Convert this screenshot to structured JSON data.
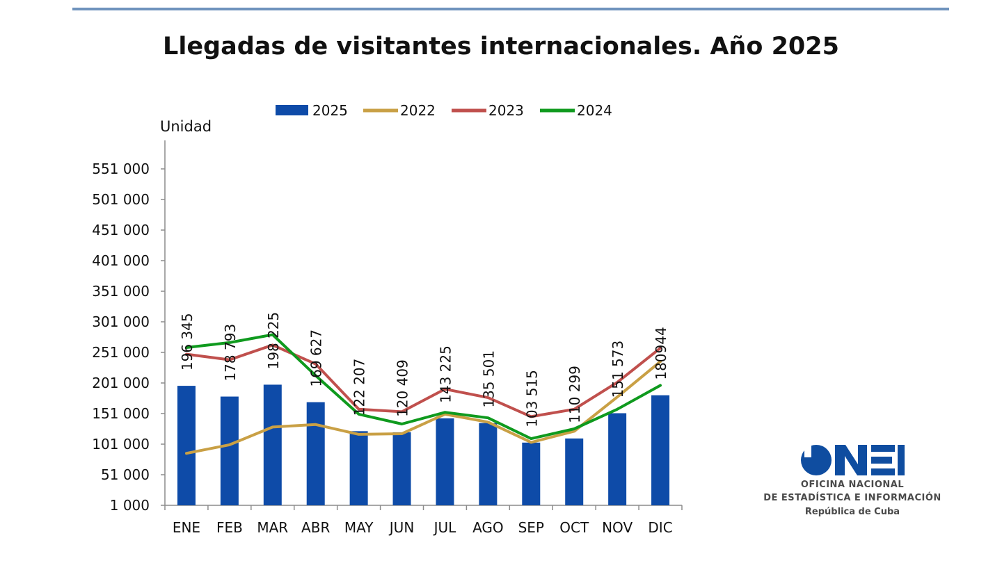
{
  "page": {
    "title": "Llegadas de visitantes internacionales. Año 2025"
  },
  "logo": {
    "line1": "OFICINA NACIONAL",
    "line2": "DE ESTADÍSTICA E INFORMACIÓN",
    "line3": "República de Cuba",
    "color": "#0f4da0"
  },
  "chart_data": {
    "type": "bar",
    "title": "Llegadas de visitantes internacionales. Año 2025",
    "ylabel": "Unidad",
    "xlabel": "",
    "ylim": [
      1000,
      601000
    ],
    "yticks": [
      1000,
      51000,
      101000,
      151000,
      201000,
      251000,
      301000,
      351000,
      401000,
      451000,
      501000,
      551000
    ],
    "ytick_labels": [
      "1 000",
      "51 000",
      "101 000",
      "151 000",
      "201 000",
      "251 000",
      "301 000",
      "351 000",
      "401 000",
      "451 000",
      "501 000",
      "551 000"
    ],
    "categories": [
      "ENE",
      "FEB",
      "MAR",
      "ABR",
      "MAY",
      "JUN",
      "JUL",
      "AGO",
      "SEP",
      "OCT",
      "NOV",
      "DIC"
    ],
    "legend_position": "top",
    "grid": false,
    "series": [
      {
        "name": "2025",
        "kind": "bar",
        "color": "#0e4ba8",
        "values": [
          196345,
          178793,
          198225,
          169627,
          122207,
          120409,
          143225,
          135501,
          103515,
          110299,
          151573,
          180944
        ],
        "labels": [
          "196 345",
          "178 793",
          "198 225",
          "169 627",
          "122 207",
          "120 409",
          "143 225",
          "135 501",
          "103 515",
          "110 299",
          "151 573",
          "180944"
        ]
      },
      {
        "name": "2022",
        "kind": "line",
        "color": "#c9a045",
        "values": [
          86000,
          100000,
          129000,
          133000,
          117000,
          118000,
          150000,
          137000,
          104000,
          122000,
          178000,
          236000
        ]
      },
      {
        "name": "2023",
        "kind": "line",
        "color": "#c0504d",
        "values": [
          248000,
          239000,
          263000,
          232000,
          158000,
          154000,
          191000,
          177000,
          146000,
          158000,
          202000,
          258000
        ]
      },
      {
        "name": "2024",
        "kind": "line",
        "color": "#0f9a1e",
        "values": [
          259000,
          267000,
          280000,
          213000,
          150000,
          134000,
          153000,
          144000,
          110000,
          126000,
          158000,
          197000
        ]
      }
    ]
  }
}
